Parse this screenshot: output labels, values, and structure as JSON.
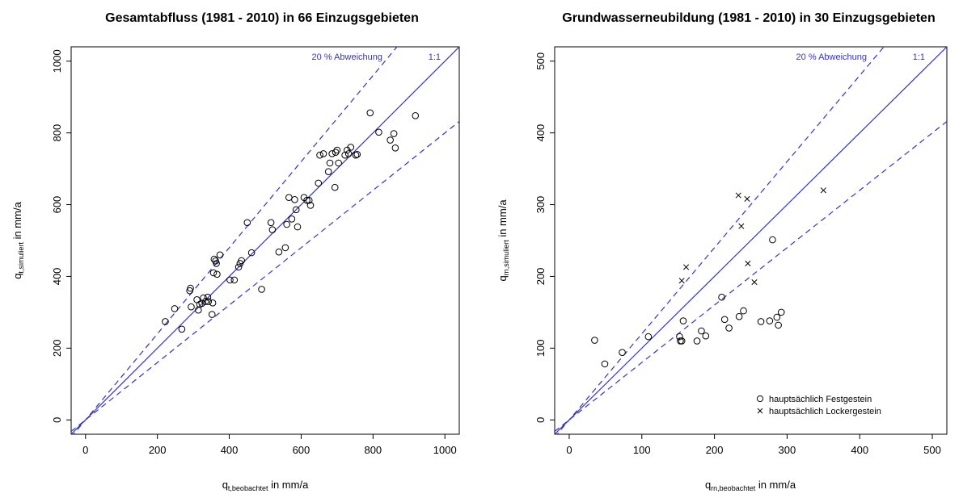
{
  "chart_data": [
    {
      "type": "scatter",
      "title": "Gesamtabfluss (1981 - 2010) in 66 Einzugsgebieten",
      "xlabel": {
        "main": "q",
        "sub": "t,beobachtet",
        "unit": " in mm/a"
      },
      "ylabel": {
        "main": "q",
        "sub": "t,simuliert",
        "unit": " in mm/a"
      },
      "xlim": [
        -40,
        1040
      ],
      "ylim": [
        -40,
        1040
      ],
      "xticks": [
        0,
        200,
        400,
        600,
        800,
        1000
      ],
      "yticks": [
        0,
        200,
        400,
        600,
        800,
        1000
      ],
      "lines": {
        "one_to_one_label": "1:1",
        "deviation_label": "20 % Abweichung",
        "deviation": 0.2
      },
      "series": [
        {
          "marker": "circle",
          "points": [
            [
              222,
              274
            ],
            [
              248,
              310
            ],
            [
              268,
              253
            ],
            [
              290,
              360
            ],
            [
              292,
              367
            ],
            [
              294,
              315
            ],
            [
              310,
              335
            ],
            [
              314,
              306
            ],
            [
              318,
              322
            ],
            [
              324,
              325
            ],
            [
              328,
              340
            ],
            [
              334,
              330
            ],
            [
              340,
              342
            ],
            [
              342,
              330
            ],
            [
              352,
              294
            ],
            [
              354,
              326
            ],
            [
              356,
              410
            ],
            [
              358,
              448
            ],
            [
              362,
              443
            ],
            [
              364,
              436
            ],
            [
              366,
              406
            ],
            [
              374,
              460
            ],
            [
              402,
              390
            ],
            [
              414,
              390
            ],
            [
              426,
              426
            ],
            [
              430,
              436
            ],
            [
              434,
              444
            ],
            [
              450,
              550
            ],
            [
              462,
              466
            ],
            [
              490,
              364
            ],
            [
              516,
              550
            ],
            [
              520,
              530
            ],
            [
              538,
              468
            ],
            [
              556,
              480
            ],
            [
              560,
              545
            ],
            [
              566,
              620
            ],
            [
              574,
              560
            ],
            [
              582,
              614
            ],
            [
              586,
              586
            ],
            [
              590,
              538
            ],
            [
              608,
              620
            ],
            [
              616,
              612
            ],
            [
              622,
              612
            ],
            [
              626,
              598
            ],
            [
              648,
              660
            ],
            [
              652,
              738
            ],
            [
              662,
              742
            ],
            [
              676,
              692
            ],
            [
              680,
              716
            ],
            [
              686,
              742
            ],
            [
              694,
              648
            ],
            [
              696,
              746
            ],
            [
              700,
              752
            ],
            [
              704,
              716
            ],
            [
              722,
              738
            ],
            [
              728,
              752
            ],
            [
              732,
              742
            ],
            [
              738,
              760
            ],
            [
              752,
              738
            ],
            [
              756,
              740
            ],
            [
              792,
              856
            ],
            [
              816,
              802
            ],
            [
              848,
              780
            ],
            [
              858,
              798
            ],
            [
              862,
              758
            ],
            [
              918,
              848
            ]
          ]
        }
      ]
    },
    {
      "type": "scatter",
      "title": "Grundwasserneubildung (1981 - 2010) in 30 Einzugsgebieten",
      "xlabel": {
        "main": "q",
        "sub": "rn,beobachtet",
        "unit": " in mm/a"
      },
      "ylabel": {
        "main": "q",
        "sub": "rn,simuliert",
        "unit": " in mm/a"
      },
      "xlim": [
        -20,
        520
      ],
      "ylim": [
        -20,
        520
      ],
      "xticks": [
        0,
        100,
        200,
        300,
        400,
        500
      ],
      "yticks": [
        0,
        100,
        200,
        300,
        400,
        500
      ],
      "lines": {
        "one_to_one_label": "1:1",
        "deviation_label": "20 % Abweichung",
        "deviation": 0.2
      },
      "legend": {
        "position": "bottom-right",
        "entries": [
          "hauptsächlich Festgestein",
          "hauptsächlich Lockergestein"
        ]
      },
      "series": [
        {
          "name": "hauptsächlich Festgestein",
          "marker": "circle",
          "points": [
            [
              35,
              111
            ],
            [
              49,
              78
            ],
            [
              73,
              94
            ],
            [
              109,
              116
            ],
            [
              152,
              116
            ],
            [
              153,
              110
            ],
            [
              155,
              110
            ],
            [
              157,
              138
            ],
            [
              176,
              110
            ],
            [
              182,
              124
            ],
            [
              188,
              117
            ],
            [
              210,
              171
            ],
            [
              214,
              140
            ],
            [
              220,
              128
            ],
            [
              234,
              144
            ],
            [
              240,
              152
            ],
            [
              264,
              137
            ],
            [
              276,
              138
            ],
            [
              280,
              251
            ],
            [
              286,
              143
            ],
            [
              288,
              132
            ],
            [
              292,
              150
            ]
          ]
        },
        {
          "name": "hauptsächlich Lockergestein",
          "marker": "cross",
          "points": [
            [
              155,
              194
            ],
            [
              161,
              213
            ],
            [
              233,
              313
            ],
            [
              237,
              270
            ],
            [
              245,
              308
            ],
            [
              246,
              218
            ],
            [
              255,
              192
            ],
            [
              350,
              320
            ]
          ]
        }
      ]
    }
  ]
}
